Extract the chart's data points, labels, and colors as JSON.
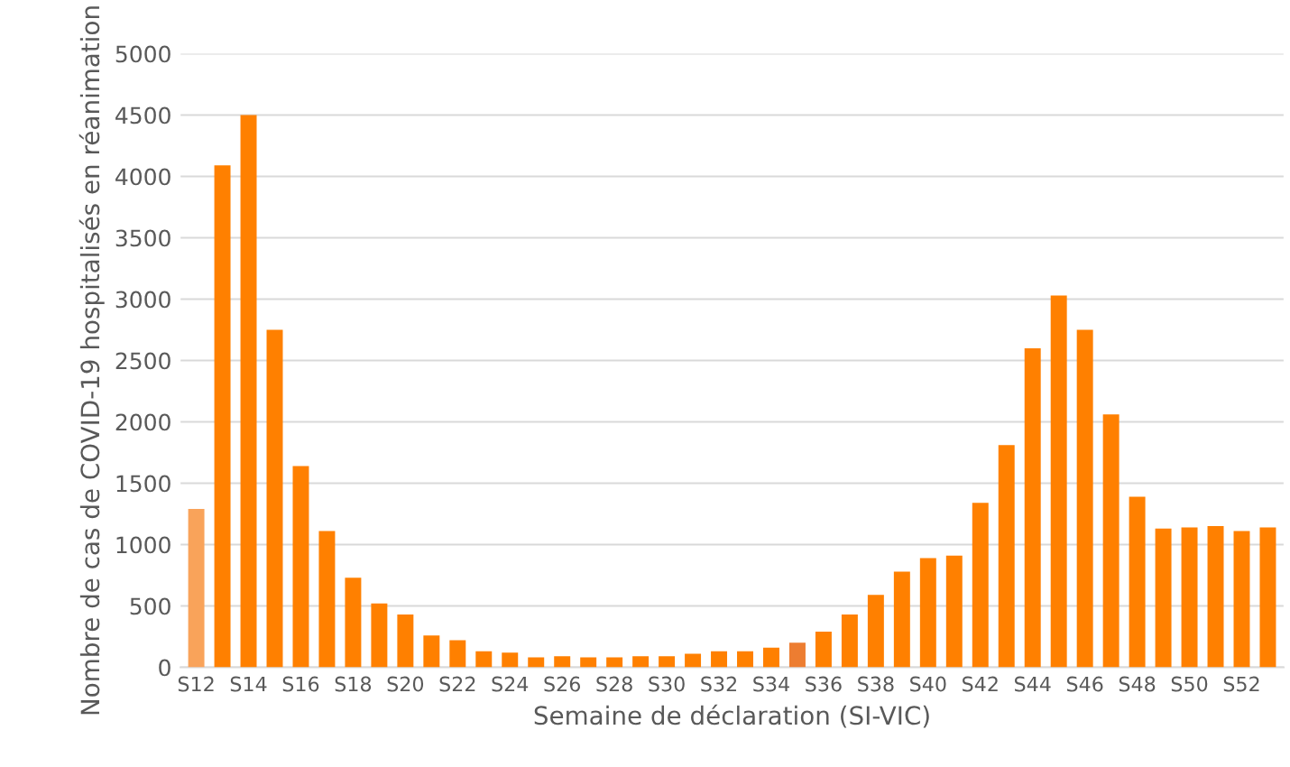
{
  "chart_data": {
    "type": "bar",
    "ylabel": "Nombre de cas de COVID-19 hospitalisés en réanimation",
    "xlabel": "Semaine de déclaration (SI-VIC)",
    "categories": [
      "S12",
      null,
      "S14",
      null,
      "S16",
      null,
      "S18",
      null,
      "S20",
      null,
      "S22",
      null,
      "S24",
      null,
      "S26",
      null,
      "S28",
      null,
      "S30",
      null,
      "S32",
      null,
      "S34",
      null,
      "S36",
      null,
      "S38",
      null,
      "S40",
      null,
      "S42",
      null,
      "S44",
      null,
      "S46",
      null,
      "S48",
      null,
      "S50",
      null,
      "S52",
      null
    ],
    "values": [
      1290,
      4090,
      4500,
      2750,
      1640,
      1110,
      730,
      520,
      430,
      260,
      220,
      130,
      120,
      80,
      90,
      80,
      80,
      90,
      90,
      110,
      130,
      130,
      160,
      200,
      290,
      430,
      590,
      780,
      890,
      910,
      1340,
      1810,
      2600,
      3030,
      2750,
      2060,
      1390,
      1130,
      1140,
      1150,
      1110,
      1140
    ],
    "colors": [
      "#f9a35a",
      "#ff8000",
      "#ff8000",
      "#ff8000",
      "#ff8000",
      "#ff8000",
      "#ff8000",
      "#ff8000",
      "#ff8000",
      "#ff8000",
      "#ff8000",
      "#ff8000",
      "#ff8000",
      "#ff8000",
      "#ff8000",
      "#ff8000",
      "#ff8000",
      "#ff8000",
      "#ff8000",
      "#ff8000",
      "#ff8000",
      "#ff8000",
      "#ff8000",
      "#ed7d31",
      "#ff8000",
      "#ff8000",
      "#ff8000",
      "#ff8000",
      "#ff8000",
      "#ff8000",
      "#ff8000",
      "#ff8000",
      "#ff8000",
      "#ff8000",
      "#ff8000",
      "#ff8000",
      "#ff8000",
      "#ff8000",
      "#ff8000",
      "#ff8000",
      "#ff8000",
      "#ff8000"
    ],
    "ylim": [
      0,
      5000
    ],
    "yticks": [
      0,
      500,
      1000,
      1500,
      2000,
      2500,
      3000,
      3500,
      4000,
      4500,
      5000
    ],
    "grid": "y"
  }
}
